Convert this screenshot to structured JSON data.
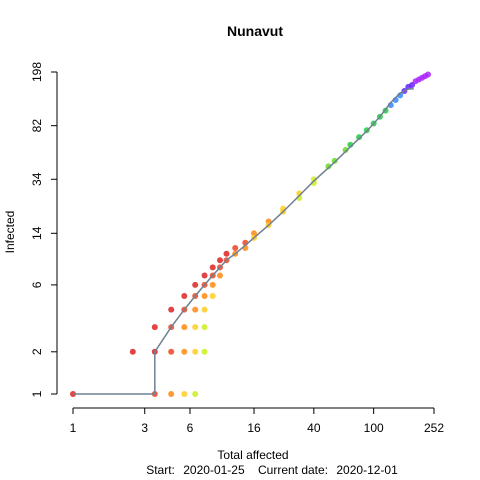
{
  "chart_data": {
    "type": "scatter",
    "title": "Nunavut",
    "xlabel": "Total affected",
    "ylabel": "Infected",
    "x_scale": "log",
    "y_scale": "log",
    "x_ticks": [
      1,
      3,
      6,
      16,
      40,
      100,
      252
    ],
    "y_ticks": [
      1,
      2,
      6,
      14,
      34,
      82,
      198
    ],
    "xlim": [
      1,
      252
    ],
    "ylim": [
      1,
      198
    ],
    "grid": false,
    "footer": {
      "start_label": "Start:",
      "start_date": "2020-01-25",
      "current_label": "Current date:",
      "current_date": "2020-12-01"
    },
    "observed_path": {
      "color": "#708090",
      "x": [
        1,
        2.5,
        3.5,
        3.5,
        4.5,
        5.5,
        6.5,
        7.5,
        8.5,
        9.5,
        10.5,
        12,
        14,
        16,
        20,
        25,
        32,
        40,
        55,
        70,
        90,
        110,
        130,
        150,
        170,
        185
      ],
      "y": [
        1,
        1,
        1,
        2,
        3,
        4,
        5,
        6,
        7,
        8,
        9,
        10,
        11.5,
        13,
        16,
        20,
        26,
        33,
        45,
        58,
        75,
        95,
        120,
        140,
        150,
        150
      ]
    },
    "simulation_points": {
      "colors": [
        "#dd2222",
        "#ee4422",
        "#ff8811",
        "#ffcc22",
        "#ccee22",
        "#66dd22",
        "#22cc44",
        "#3388ff",
        "#6622ff",
        "#aa22ff"
      ],
      "x": [
        1,
        2.5,
        3.5,
        3.5,
        3.5,
        4.5,
        4.5,
        4.5,
        4.5,
        5.5,
        5.5,
        5.5,
        5.5,
        5.5,
        6.5,
        6.5,
        6.5,
        6.5,
        6.5,
        6.5,
        7.5,
        7.5,
        7.5,
        7.5,
        7.5,
        7.5,
        8.5,
        8.5,
        8.5,
        8.5,
        9.5,
        9.5,
        9.5,
        10.5,
        10.5,
        12,
        12,
        14,
        14,
        16,
        16,
        20,
        20,
        25,
        25,
        32,
        32,
        40,
        40,
        50,
        55,
        65,
        70,
        80,
        90,
        100,
        110,
        120,
        130,
        140,
        150,
        160,
        170,
        180,
        190,
        200,
        210,
        220,
        230
      ],
      "y": [
        1,
        2,
        3,
        2,
        1,
        4,
        3,
        2,
        1,
        5,
        4,
        3,
        2,
        1,
        6,
        5,
        4,
        3,
        2,
        1,
        7,
        6,
        5,
        4,
        3,
        2,
        8,
        7,
        6,
        5,
        9,
        8,
        7,
        10,
        9,
        11,
        10,
        12,
        11,
        14,
        13,
        17,
        16,
        21,
        20,
        27,
        25,
        34,
        32,
        42,
        46,
        55,
        60,
        68,
        76,
        85,
        95,
        105,
        115,
        125,
        135,
        145,
        155,
        160,
        170,
        175,
        180,
        185,
        190
      ],
      "color_index": [
        0,
        0,
        0,
        0,
        1,
        0,
        1,
        1,
        2,
        0,
        1,
        2,
        2,
        3,
        0,
        1,
        2,
        3,
        3,
        4,
        0,
        1,
        2,
        3,
        4,
        4,
        0,
        1,
        2,
        3,
        0,
        1,
        2,
        0,
        1,
        1,
        2,
        1,
        2,
        2,
        3,
        2,
        3,
        3,
        3,
        3,
        4,
        4,
        4,
        5,
        5,
        5,
        6,
        6,
        6,
        6,
        6,
        6,
        7,
        7,
        7,
        8,
        8,
        8,
        9,
        9,
        9,
        9,
        9
      ]
    }
  }
}
